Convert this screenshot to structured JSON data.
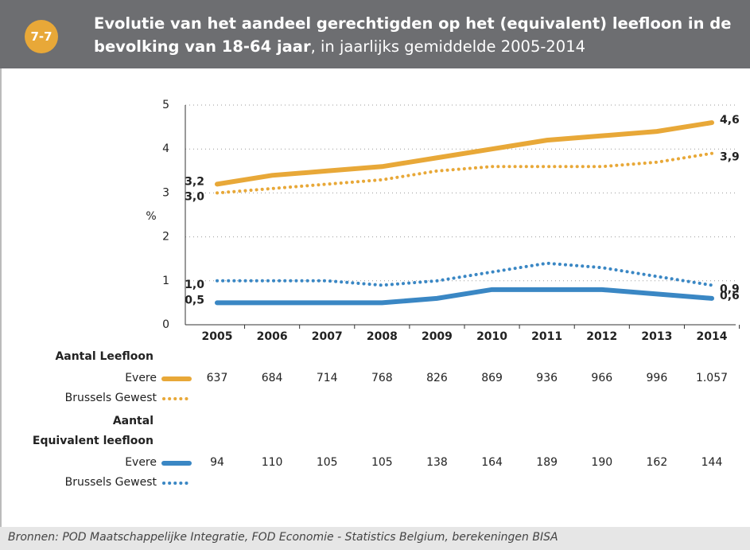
{
  "chart_data": {
    "type": "line",
    "badge": "7-7",
    "title": "Evolutie van het aandeel gerechtigden op het (equivalent) leefloon in de bevolking van 18-64 jaar",
    "subtitle": ", in jaarlijks gemiddelde 2005-2014",
    "y_label": "%",
    "categories": [
      "2005",
      "2006",
      "2007",
      "2008",
      "2009",
      "2010",
      "2011",
      "2012",
      "2013",
      "2014"
    ],
    "ylim": [
      0,
      5
    ],
    "yticks": [
      0,
      1,
      2,
      3,
      4,
      5
    ],
    "grid": true,
    "groups": [
      {
        "label": [
          "Aantal Leefloon"
        ],
        "color": "#e8a838"
      },
      {
        "label": [
          "Aantal",
          "Equivalent leefloon"
        ],
        "color": "#3a87c4"
      }
    ],
    "series": [
      {
        "name": "Evere",
        "group": 0,
        "color": "#e8a838",
        "style": "solid",
        "values": [
          3.2,
          3.4,
          3.5,
          3.6,
          3.8,
          4.0,
          4.2,
          4.3,
          4.4,
          4.6
        ],
        "value_labels": [
          "3,2",
          null,
          null,
          null,
          null,
          null,
          null,
          null,
          null,
          "4,6"
        ],
        "counts": [
          "637",
          "684",
          "714",
          "768",
          "826",
          "869",
          "936",
          "966",
          "996",
          "1.057"
        ]
      },
      {
        "name": "Brussels Gewest",
        "group": 0,
        "color": "#e8a838",
        "style": "dotted",
        "values": [
          3.0,
          3.1,
          3.2,
          3.3,
          3.5,
          3.6,
          3.6,
          3.6,
          3.7,
          3.9
        ],
        "value_labels": [
          "3,0",
          null,
          null,
          null,
          null,
          null,
          null,
          null,
          null,
          "3,9"
        ]
      },
      {
        "name": "Evere",
        "group": 1,
        "color": "#3a87c4",
        "style": "solid",
        "values": [
          0.5,
          0.5,
          0.5,
          0.5,
          0.6,
          0.8,
          0.8,
          0.8,
          0.7,
          0.6
        ],
        "value_labels": [
          "0,5",
          null,
          null,
          null,
          null,
          null,
          null,
          null,
          null,
          "0,6"
        ],
        "counts": [
          "94",
          "110",
          "105",
          "105",
          "138",
          "164",
          "189",
          "190",
          "162",
          "144"
        ]
      },
      {
        "name": "Brussels Gewest",
        "group": 1,
        "color": "#3a87c4",
        "style": "dotted",
        "values": [
          1.0,
          1.0,
          1.0,
          0.9,
          1.0,
          1.2,
          1.4,
          1.3,
          1.1,
          0.9
        ],
        "value_labels": [
          "1,0",
          null,
          null,
          null,
          null,
          null,
          null,
          null,
          null,
          "0,9"
        ]
      }
    ],
    "source": "Bronnen: POD Maatschappelijke Integratie, FOD Economie - Statistics Belgium, berekeningen BISA"
  }
}
